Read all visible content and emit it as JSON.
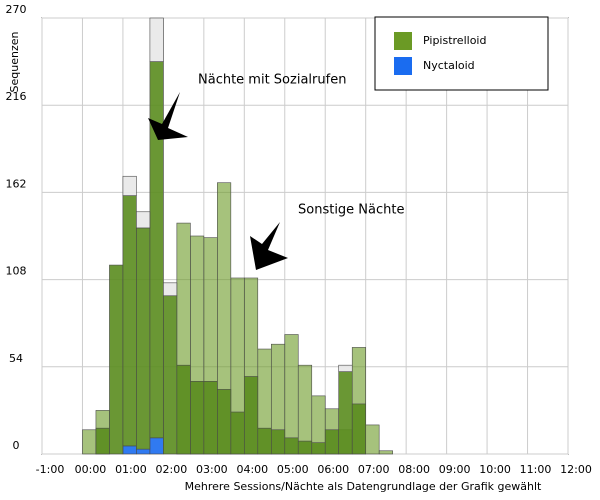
{
  "chart_data": {
    "type": "histogram",
    "ylabel": "Sequenzen",
    "xlabel": "Mehrere Sessions/Nächte als Datengrundlage der Grafik gewählt",
    "bins": [
      0,
      0.333,
      0.667,
      1,
      1.333,
      1.667,
      2,
      2.333,
      2.667,
      3,
      3.333,
      3.667,
      4,
      4.333,
      4.667,
      5,
      5.333,
      5.667,
      6,
      6.333,
      6.667,
      7,
      7.333,
      7.667
    ],
    "xlim": [
      -1,
      12
    ],
    "xticks": [
      {
        "value": -1,
        "label": "-1:00"
      },
      {
        "value": 0,
        "label": "00:00"
      },
      {
        "value": 1,
        "label": "01:00"
      },
      {
        "value": 2,
        "label": "02:00"
      },
      {
        "value": 3,
        "label": "03:00"
      },
      {
        "value": 4,
        "label": "04:00"
      },
      {
        "value": 5,
        "label": "05:00"
      },
      {
        "value": 6,
        "label": "06:00"
      },
      {
        "value": 7,
        "label": "07:00"
      },
      {
        "value": 8,
        "label": "08:00"
      },
      {
        "value": 9,
        "label": "09:00"
      },
      {
        "value": 10,
        "label": "10:00"
      },
      {
        "value": 11,
        "label": "11:00"
      },
      {
        "value": 12,
        "label": "12:00"
      }
    ],
    "ylim": [
      0,
      270
    ],
    "yticks": [
      0,
      54,
      108,
      162,
      216,
      270
    ],
    "grid": true,
    "legend": [
      {
        "name": "Pipistrelloid",
        "color": "#6b9a25"
      },
      {
        "name": "Nyctaloid",
        "color": "#1a6cf0"
      }
    ],
    "groups": [
      {
        "label": "Sonstige Nächte",
        "opacity": 0.6,
        "series": [
          {
            "color": "#6b9a25",
            "values": [
              15,
              27,
              0,
              0,
              0,
              0,
              0,
              143,
              135,
              134,
              168,
              109,
              109,
              65,
              68,
              74,
              55,
              36,
              28,
              15,
              66,
              18,
              2
            ]
          }
        ]
      },
      {
        "label": "Nächte mit Sozialrufen",
        "opacity": 0.9,
        "series": [
          {
            "color": "#1a6cf0",
            "values": [
              0,
              0,
              0,
              5,
              3,
              10,
              0,
              0,
              0,
              0,
              0,
              0,
              0,
              0,
              0,
              0,
              0,
              0,
              0,
              0,
              0,
              0,
              0
            ]
          },
          {
            "color": "#5a8c1e",
            "values": [
              0,
              16,
              117,
              155,
              137,
              233,
              98,
              55,
              45,
              45,
              40,
              26,
              48,
              16,
              15,
              10,
              8,
              7,
              15,
              51,
              31,
              0,
              0
            ]
          },
          {
            "color": "#e8e8e8",
            "values": [
              0,
              0,
              0,
              12,
              10,
              27,
              8,
              0,
              0,
              0,
              0,
              0,
              0,
              0,
              0,
              0,
              0,
              0,
              0,
              4,
              0,
              0,
              0
            ]
          }
        ]
      }
    ]
  }
}
